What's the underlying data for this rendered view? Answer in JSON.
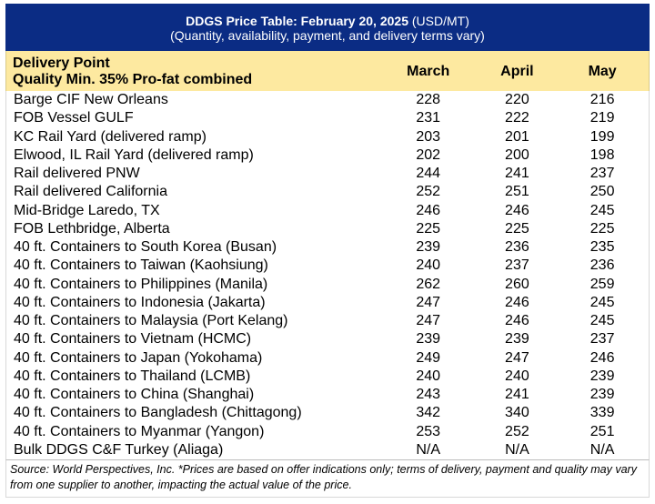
{
  "title": {
    "bold": "DDGS Price Table: February 20, 2025",
    "unit": " (USD/MT)",
    "subtitle": "(Quantity, availability, payment, and delivery terms vary)"
  },
  "header": {
    "line1": "Delivery Point",
    "line2": "Quality Min. 35% Pro-fat combined",
    "col1": "March",
    "col2": "April",
    "col3": "May"
  },
  "rows": [
    {
      "name": "Barge CIF New Orleans",
      "march": "228",
      "april": "220",
      "may": "216"
    },
    {
      "name": "FOB Vessel GULF",
      "march": "231",
      "april": "222",
      "may": "219"
    },
    {
      "name": "KC Rail Yard (delivered ramp)",
      "march": "203",
      "april": "201",
      "may": "199"
    },
    {
      "name": "Elwood, IL Rail Yard (delivered ramp)",
      "march": "202",
      "april": "200",
      "may": "198"
    },
    {
      "name": "Rail delivered PNW",
      "march": "244",
      "april": "241",
      "may": "237"
    },
    {
      "name": "Rail delivered California",
      "march": "252",
      "april": "251",
      "may": "250"
    },
    {
      "name": "Mid-Bridge Laredo, TX",
      "march": "246",
      "april": "246",
      "may": "245"
    },
    {
      "name": "FOB Lethbridge, Alberta",
      "march": "225",
      "april": "225",
      "may": "225"
    },
    {
      "name": "40 ft. Containers to South Korea (Busan)",
      "march": "239",
      "april": "236",
      "may": "235"
    },
    {
      "name": "40 ft. Containers to Taiwan (Kaohsiung)",
      "march": "240",
      "april": "237",
      "may": "236"
    },
    {
      "name": "40 ft. Containers to Philippines (Manila)",
      "march": "262",
      "april": "260",
      "may": "259"
    },
    {
      "name": "40 ft. Containers to Indonesia (Jakarta)",
      "march": "247",
      "april": "246",
      "may": "245"
    },
    {
      "name": "40 ft. Containers to Malaysia (Port Kelang)",
      "march": "247",
      "april": "246",
      "may": "245"
    },
    {
      "name": "40 ft. Containers to Vietnam (HCMC)",
      "march": "239",
      "april": "239",
      "may": "237"
    },
    {
      "name": "40 ft. Containers to Japan (Yokohama)",
      "march": "249",
      "april": "247",
      "may": "246"
    },
    {
      "name": "40 ft. Containers to Thailand (LCMB)",
      "march": "240",
      "april": "240",
      "may": "239"
    },
    {
      "name": "40 ft. Containers to China (Shanghai)",
      "march": "243",
      "april": "241",
      "may": "239"
    },
    {
      "name": "40 ft. Containers to Bangladesh (Chittagong)",
      "march": "342",
      "april": "340",
      "may": "339"
    },
    {
      "name": "40 ft. Containers to Myanmar (Yangon)",
      "march": "253",
      "april": "252",
      "may": "251"
    },
    {
      "name": "Bulk DDGS C&F Turkey (Aliaga)",
      "march": "N/A",
      "april": "N/A",
      "may": "N/A"
    }
  ],
  "footer": "Source: World Perspectives, Inc. *Prices are based on offer indications only; terms of delivery, payment and quality may vary from one supplier to another, impacting the actual value of the price.",
  "colors": {
    "title_bg": "#0b2c84",
    "header_bg": "#fde9a0"
  }
}
